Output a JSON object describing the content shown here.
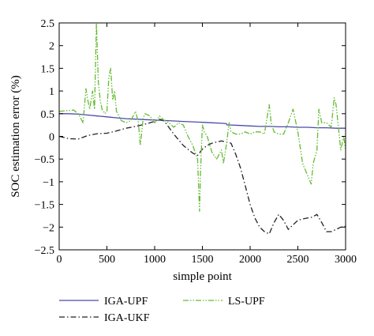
{
  "chart_data": {
    "type": "line",
    "title": "",
    "xlabel": "simple point",
    "ylabel": "SOC estimation error (%)",
    "xlim": [
      0,
      3000
    ],
    "ylim": [
      -2.5,
      2.5
    ],
    "xticks": [
      0,
      500,
      1000,
      1500,
      2000,
      2500,
      3000
    ],
    "yticks": [
      -2.5,
      -2,
      -1.5,
      -1,
      -0.5,
      0,
      0.5,
      1,
      1.5,
      2,
      2.5
    ],
    "grid": false,
    "legend_position": "bottom",
    "series": [
      {
        "name": "IGA-UPF",
        "color": "#4a4aaa",
        "dash": "solid",
        "x": [
          0,
          100,
          200,
          300,
          400,
          500,
          600,
          700,
          800,
          900,
          1000,
          1100,
          1200,
          1300,
          1400,
          1500,
          1600,
          1700,
          1750,
          1760,
          1800,
          1900,
          2000,
          2100,
          2200,
          2300,
          2400,
          2500,
          2600,
          2700,
          2800,
          2900,
          3000
        ],
        "y": [
          0.5,
          0.5,
          0.49,
          0.47,
          0.45,
          0.43,
          0.41,
          0.39,
          0.38,
          0.37,
          0.36,
          0.35,
          0.34,
          0.33,
          0.32,
          0.31,
          0.3,
          0.29,
          0.28,
          0.25,
          0.25,
          0.24,
          0.23,
          0.22,
          0.22,
          0.21,
          0.21,
          0.2,
          0.2,
          0.19,
          0.19,
          0.18,
          0.18
        ]
      },
      {
        "name": "IGA-UKF",
        "color": "#222222",
        "dash": "dashdot",
        "x": [
          0,
          100,
          200,
          300,
          400,
          500,
          600,
          700,
          800,
          900,
          1000,
          1050,
          1100,
          1200,
          1300,
          1400,
          1450,
          1500,
          1550,
          1600,
          1700,
          1800,
          1850,
          1900,
          1950,
          2000,
          2050,
          2100,
          2150,
          2200,
          2250,
          2300,
          2350,
          2400,
          2450,
          2500,
          2550,
          2600,
          2650,
          2700,
          2750,
          2800,
          2850,
          2900,
          2950,
          3000
        ],
        "y": [
          0.0,
          -0.05,
          -0.06,
          0.02,
          0.06,
          0.07,
          0.12,
          0.18,
          0.22,
          0.27,
          0.33,
          0.38,
          0.34,
          0.05,
          -0.2,
          -0.37,
          -0.42,
          -0.28,
          -0.2,
          -0.15,
          -0.1,
          -0.15,
          -0.4,
          -0.7,
          -1.1,
          -1.5,
          -1.8,
          -2.0,
          -2.1,
          -2.15,
          -1.9,
          -1.72,
          -1.85,
          -2.05,
          -1.95,
          -1.85,
          -1.82,
          -1.8,
          -1.78,
          -1.72,
          -1.9,
          -2.1,
          -2.1,
          -2.05,
          -2.0,
          -1.98
        ]
      },
      {
        "name": "LS-UPF",
        "color": "#66bb33",
        "dash": "dashdotdot",
        "x": [
          0,
          150,
          200,
          250,
          280,
          300,
          320,
          350,
          370,
          390,
          410,
          430,
          450,
          480,
          500,
          520,
          540,
          560,
          580,
          600,
          650,
          700,
          750,
          800,
          830,
          850,
          880,
          900,
          950,
          1000,
          1050,
          1100,
          1150,
          1200,
          1250,
          1300,
          1350,
          1400,
          1450,
          1470,
          1480,
          1500,
          1520,
          1550,
          1600,
          1650,
          1700,
          1720,
          1750,
          1780,
          1800,
          1850,
          1900,
          1950,
          2000,
          2050,
          2100,
          2150,
          2200,
          2220,
          2250,
          2300,
          2350,
          2400,
          2450,
          2500,
          2550,
          2600,
          2640,
          2660,
          2700,
          2720,
          2750,
          2800,
          2850,
          2880,
          2900,
          2950,
          2980,
          3000
        ],
        "y": [
          0.55,
          0.58,
          0.5,
          0.3,
          1.05,
          0.8,
          0.6,
          1.0,
          0.6,
          2.5,
          1.2,
          0.8,
          0.6,
          0.5,
          0.55,
          1.3,
          1.5,
          0.8,
          1.0,
          0.55,
          0.35,
          0.3,
          0.35,
          0.55,
          0.3,
          -0.2,
          0.4,
          0.5,
          0.45,
          0.3,
          0.45,
          0.35,
          0.3,
          0.2,
          0.3,
          0.25,
          0.0,
          -0.2,
          -0.5,
          -1.65,
          -0.8,
          0.25,
          0.1,
          0.0,
          -0.35,
          -0.5,
          -0.3,
          -0.6,
          -0.2,
          0.3,
          0.1,
          0.05,
          0.05,
          0.1,
          0.05,
          0.1,
          0.1,
          0.05,
          0.7,
          0.3,
          0.1,
          0.05,
          0.05,
          0.3,
          0.6,
          0.1,
          -0.6,
          -0.85,
          -1.05,
          -0.6,
          -0.3,
          0.6,
          0.3,
          0.3,
          0.2,
          0.85,
          0.7,
          -0.3,
          0.0,
          -0.3
        ]
      }
    ]
  }
}
